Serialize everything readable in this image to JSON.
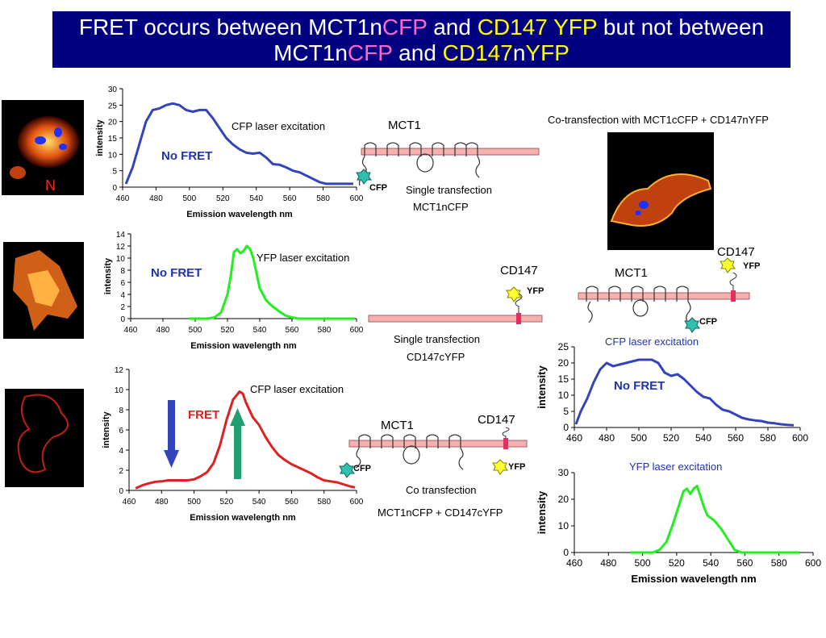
{
  "title": {
    "l1_a": "FRET occurs between MCT1n",
    "l1_b": "CFP",
    "l1_c": " and ",
    "l1_d": "CD147  YFP",
    "l1_e": " but not between",
    "l2_a": "MCT1n",
    "l2_b": "CFP",
    "l2_c": " and ",
    "l2_d": "CD147",
    "l2_e": "n",
    "l2_f": "YFP"
  },
  "cell_image_1_label": "N",
  "colors": {
    "title_bg": "#000080",
    "cfp_blue": "#3344bb",
    "yfp_green": "#22ee22",
    "fret_red": "#e02020",
    "no_fret": "#2233aa"
  },
  "labels": {
    "cfp_exc_1": "CFP laser excitation",
    "no_fret_1": "No FRET",
    "mct1_1": "MCT1",
    "cfp_tag_1": "CFP",
    "single_transfection_1": "Single transfection",
    "mct1ncfp": "MCT1nCFP",
    "cotrans_title": "Co-transfection with MCT1cCFP + CD147nYFP",
    "yfp_exc_2": "YFP laser excitation",
    "no_fret_2": "No FRET",
    "cd147_2": "CD147",
    "yfp_tag_2": "YFP",
    "single_transfection_2": "Single transfection",
    "cd147cyfp": "CD147cYFP",
    "cd147_r": "CD147",
    "mct1_r": "MCT1",
    "yfp_tag_r": "YFP",
    "cfp_tag_r": "CFP",
    "cfp_exc_r": "CFP laser excitation",
    "no_fret_r": "No FRET",
    "yfp_exc_r": "YFP laser excitation",
    "cfp_exc_3": "CFP laser excitation",
    "fret_3": "FRET",
    "mct1_3": "MCT1",
    "cd147_3": "CD147",
    "cfp_tag_3": "CFP",
    "yfp_tag_3": "YFP",
    "cotransfection_3": "Co transfection",
    "mct1ncfp_cd147cyfp": "MCT1nCFP + CD147cYFP"
  },
  "chart_data": [
    {
      "id": "c1",
      "type": "line",
      "xlabel": "Emission wavelength nm",
      "ylabel": "intensity",
      "xlim": [
        460,
        600
      ],
      "ylim": [
        0,
        30
      ],
      "xticks": [
        460,
        480,
        500,
        520,
        540,
        560,
        580,
        600
      ],
      "yticks": [
        0,
        5,
        10,
        15,
        20,
        25,
        30
      ],
      "series": [
        {
          "color": "#3344bb",
          "x": [
            462,
            466,
            470,
            474,
            478,
            482,
            486,
            490,
            494,
            498,
            502,
            506,
            510,
            514,
            518,
            522,
            526,
            530,
            534,
            538,
            542,
            546,
            550,
            554,
            558,
            562,
            566,
            570,
            574,
            578,
            582,
            586,
            590,
            594,
            598
          ],
          "y": [
            1,
            6,
            13,
            20,
            23.5,
            24,
            25,
            25.5,
            25,
            23.5,
            23,
            23.5,
            23.5,
            21,
            18,
            15,
            13,
            11.5,
            10.5,
            10.2,
            10.5,
            9,
            7,
            6.8,
            6,
            5,
            4.5,
            3.5,
            2.5,
            1.5,
            1,
            1,
            1,
            1,
            1
          ]
        }
      ]
    },
    {
      "id": "c2",
      "type": "line",
      "xlabel": "Emission wavelength nm",
      "ylabel": "intensity",
      "xlim": [
        460,
        600
      ],
      "ylim": [
        0,
        14
      ],
      "xticks": [
        460,
        480,
        500,
        520,
        540,
        560,
        580,
        600
      ],
      "yticks": [
        0,
        2,
        4,
        6,
        8,
        10,
        12,
        14
      ],
      "series": [
        {
          "color": "#22ee22",
          "x": [
            496,
            500,
            504,
            508,
            512,
            516,
            520,
            522,
            524,
            526,
            528,
            530,
            532,
            534,
            536,
            538,
            540,
            544,
            548,
            552,
            556,
            560,
            564,
            568,
            572,
            576,
            580,
            584,
            588,
            592,
            596,
            599
          ],
          "y": [
            0,
            0,
            0,
            0,
            0.2,
            1,
            4,
            7,
            11,
            11.5,
            10.8,
            11.2,
            12,
            11.5,
            10,
            7.5,
            5,
            3,
            2,
            1.2,
            0.5,
            0.2,
            0,
            0,
            0,
            0,
            0,
            0,
            0,
            0,
            0,
            0
          ]
        }
      ]
    },
    {
      "id": "c3",
      "type": "line",
      "xlabel": "Emission wavelength nm",
      "ylabel": "intensity",
      "xlim": [
        460,
        600
      ],
      "ylim": [
        0,
        12
      ],
      "xticks": [
        460,
        480,
        500,
        520,
        540,
        560,
        580,
        600
      ],
      "yticks": [
        0,
        2,
        4,
        6,
        8,
        10,
        12
      ],
      "series": [
        {
          "color": "#e02020",
          "x": [
            464,
            468,
            472,
            476,
            480,
            484,
            488,
            492,
            496,
            500,
            504,
            508,
            512,
            516,
            520,
            524,
            528,
            530,
            532,
            536,
            540,
            544,
            548,
            552,
            556,
            560,
            564,
            568,
            572,
            576,
            580,
            584,
            588,
            592,
            596,
            599
          ],
          "y": [
            0.2,
            0.5,
            0.7,
            0.85,
            0.9,
            1,
            1,
            1,
            1,
            1.1,
            1.4,
            1.8,
            2.7,
            4.5,
            7,
            9,
            9.8,
            9.6,
            8.7,
            7.3,
            6.5,
            5.3,
            4.3,
            3.5,
            3,
            2.6,
            2.3,
            2,
            1.7,
            1.3,
            1,
            0.9,
            0.8,
            0.6,
            0.4,
            0.3
          ]
        }
      ]
    },
    {
      "id": "c4",
      "type": "line",
      "xlabel": "",
      "ylabel": "intensity",
      "xlim": [
        460,
        600
      ],
      "ylim": [
        0,
        25
      ],
      "xticks": [
        460,
        480,
        500,
        520,
        540,
        560,
        580,
        600
      ],
      "yticks": [
        0,
        5,
        10,
        15,
        20,
        25
      ],
      "series": [
        {
          "color": "#3344bb",
          "x": [
            461,
            464,
            468,
            472,
            476,
            480,
            484,
            488,
            492,
            496,
            500,
            504,
            508,
            512,
            516,
            520,
            524,
            528,
            532,
            536,
            540,
            544,
            548,
            552,
            556,
            560,
            564,
            568,
            572,
            576,
            580,
            584,
            588,
            592,
            596
          ],
          "y": [
            1,
            5,
            9,
            14,
            18,
            20,
            19,
            19.5,
            20,
            20.5,
            21,
            21,
            21,
            20,
            17,
            16,
            16.5,
            15,
            13,
            11,
            9.5,
            9,
            7,
            5.5,
            5,
            4,
            3,
            2.5,
            2.2,
            2,
            1.5,
            1.3,
            1,
            0.8,
            0.7
          ]
        }
      ]
    },
    {
      "id": "c5",
      "type": "line",
      "xlabel": "Emission wavelength nm",
      "ylabel": "intensity",
      "xlim": [
        460,
        600
      ],
      "ylim": [
        0,
        30
      ],
      "xticks": [
        460,
        480,
        500,
        520,
        540,
        560,
        580,
        600
      ],
      "yticks": [
        0,
        10,
        20,
        30
      ],
      "series": [
        {
          "color": "#22ee22",
          "x": [
            493,
            500,
            506,
            510,
            514,
            518,
            522,
            524,
            526,
            528,
            530,
            532,
            534,
            536,
            538,
            542,
            546,
            550,
            554,
            558,
            562,
            566,
            570,
            574,
            578,
            582,
            586,
            590,
            592
          ],
          "y": [
            0,
            0,
            0,
            1,
            4,
            11,
            19,
            23,
            24,
            22,
            24,
            25,
            21,
            17,
            14,
            12,
            9,
            5,
            1,
            0,
            0,
            0,
            0,
            0,
            0,
            0,
            0,
            0,
            0
          ]
        }
      ]
    }
  ]
}
